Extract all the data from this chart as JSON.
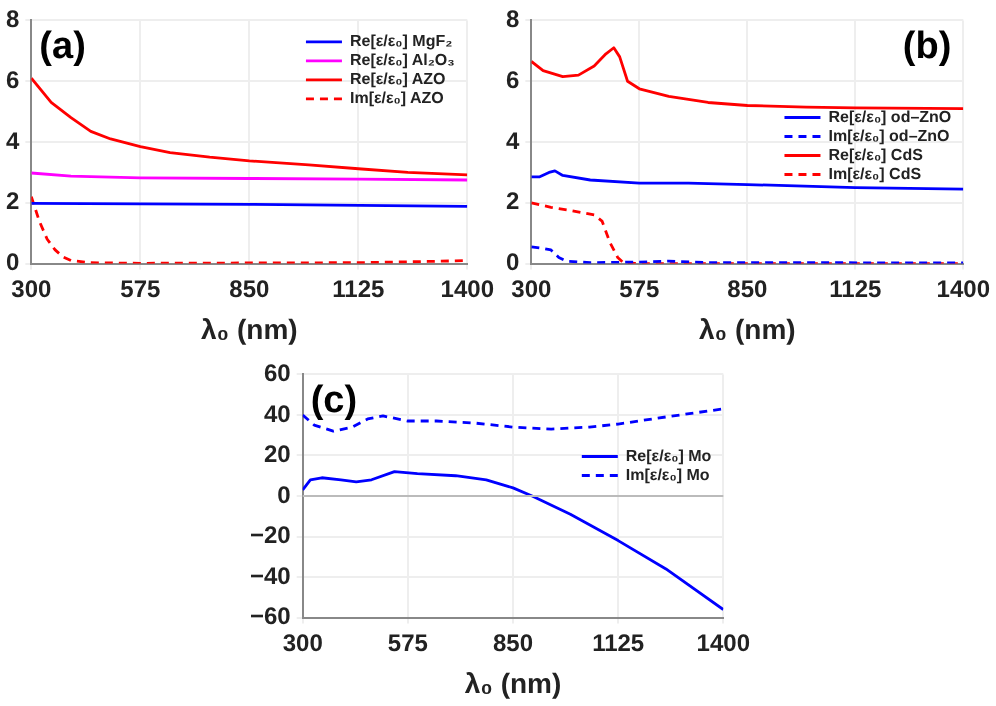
{
  "chart_data": [
    {
      "type": "line",
      "title": "(a)",
      "xlabel": "λ₀ (nm)",
      "xlim": [
        300,
        1400
      ],
      "xticks": [
        300,
        575,
        850,
        1125,
        1400
      ],
      "ylim": [
        0,
        8
      ],
      "yticks": [
        0,
        2,
        4,
        6,
        8
      ],
      "grid": true,
      "legend": "top right",
      "marker": "none",
      "series": [
        {
          "name": "Re[ε/ε₀] MgF₂",
          "color": "#0000ff",
          "line_style": "solid",
          "x": [
            300,
            850,
            1400
          ],
          "values": [
            1.98,
            1.95,
            1.88
          ]
        },
        {
          "name": "Re[ε/ε₀] Al₂O₃",
          "color": "#ff00ff",
          "line_style": "solid",
          "x": [
            300,
            400,
            575,
            850,
            1125,
            1400
          ],
          "values": [
            2.98,
            2.88,
            2.82,
            2.8,
            2.78,
            2.75
          ]
        },
        {
          "name": "Re[ε/ε₀] AZO",
          "color": "#ff0000",
          "line_style": "solid",
          "x": [
            300,
            350,
            400,
            450,
            500,
            575,
            650,
            750,
            850,
            1000,
            1125,
            1250,
            1400
          ],
          "values": [
            6.1,
            5.3,
            4.8,
            4.35,
            4.1,
            3.85,
            3.65,
            3.5,
            3.38,
            3.25,
            3.12,
            3.0,
            2.92
          ]
        },
        {
          "name": "Im[ε/ε₀] AZO",
          "color": "#ff0000",
          "line_style": "dashed",
          "x": [
            300,
            320,
            340,
            360,
            380,
            400,
            450,
            575,
            1125,
            1300,
            1400
          ],
          "values": [
            2.2,
            1.4,
            0.8,
            0.45,
            0.22,
            0.1,
            0.03,
            0.01,
            0.03,
            0.07,
            0.1
          ]
        }
      ]
    },
    {
      "type": "line",
      "title": "(b)",
      "xlabel": "λ₀ (nm)",
      "xlim": [
        300,
        1400
      ],
      "xticks": [
        300,
        575,
        850,
        1125,
        1400
      ],
      "ylim": [
        0,
        8
      ],
      "yticks": [
        0,
        2,
        4,
        6,
        8
      ],
      "grid": true,
      "legend": "right",
      "marker": "none",
      "series": [
        {
          "name": "Re[ε/ε₀] od–ZnO",
          "color": "#0000ff",
          "line_style": "solid",
          "x": [
            300,
            320,
            345,
            360,
            380,
            450,
            575,
            700,
            850,
            1125,
            1400
          ],
          "values": [
            2.85,
            2.85,
            3.0,
            3.05,
            2.9,
            2.75,
            2.65,
            2.65,
            2.6,
            2.5,
            2.45
          ]
        },
        {
          "name": "Im[ε/ε₀] od–ZnO",
          "color": "#0000ff",
          "line_style": "dashed",
          "x": [
            300,
            330,
            350,
            370,
            390,
            450,
            575,
            650,
            750,
            1000,
            1400
          ],
          "values": [
            0.55,
            0.5,
            0.45,
            0.2,
            0.08,
            0.03,
            0.05,
            0.08,
            0.03,
            0.03,
            0.02
          ]
        },
        {
          "name": "Re[ε/ε₀] CdS",
          "color": "#ff0000",
          "line_style": "solid",
          "x": [
            300,
            330,
            380,
            420,
            460,
            490,
            510,
            525,
            545,
            575,
            650,
            750,
            850,
            1000,
            1125,
            1400
          ],
          "values": [
            6.65,
            6.35,
            6.15,
            6.2,
            6.5,
            6.9,
            7.1,
            6.8,
            6.0,
            5.75,
            5.5,
            5.3,
            5.2,
            5.15,
            5.12,
            5.1
          ]
        },
        {
          "name": "Im[ε/ε₀] CdS",
          "color": "#ff0000",
          "line_style": "dashed",
          "x": [
            300,
            350,
            400,
            460,
            480,
            500,
            520,
            535,
            575,
            1400
          ],
          "values": [
            2.0,
            1.85,
            1.75,
            1.6,
            1.4,
            0.7,
            0.2,
            0.02,
            0,
            0
          ]
        }
      ]
    },
    {
      "type": "line",
      "title": "(c)",
      "xlabel": "λ₀ (nm)",
      "xlim": [
        300,
        1400
      ],
      "xticks": [
        300,
        575,
        850,
        1125,
        1400
      ],
      "ylim": [
        -60,
        60
      ],
      "yticks": [
        -60,
        -40,
        -20,
        0,
        20,
        40,
        60
      ],
      "grid": true,
      "legend": "right",
      "marker": "none",
      "ref_lines": [
        {
          "axis": "y",
          "value": 0,
          "color": "#bbbbbb"
        }
      ],
      "series": [
        {
          "name": "Re[ε/ε₀] Mo",
          "color": "#0000ff",
          "line_style": "solid",
          "x": [
            300,
            320,
            350,
            400,
            440,
            480,
            540,
            600,
            700,
            780,
            850,
            900,
            1000,
            1125,
            1250,
            1400
          ],
          "values": [
            3,
            8,
            9,
            8,
            7,
            8,
            12,
            11,
            10,
            8,
            4,
            0,
            -9,
            -22,
            -36,
            -56
          ]
        },
        {
          "name": "Im[ε/ε₀] Mo",
          "color": "#0000ff",
          "line_style": "dashed",
          "x": [
            300,
            330,
            380,
            430,
            470,
            510,
            575,
            650,
            750,
            850,
            950,
            1050,
            1125,
            1250,
            1400
          ],
          "values": [
            40,
            35,
            32,
            34,
            38,
            39.5,
            37,
            37,
            36,
            34,
            33,
            34,
            35.5,
            39,
            43
          ]
        }
      ]
    }
  ]
}
